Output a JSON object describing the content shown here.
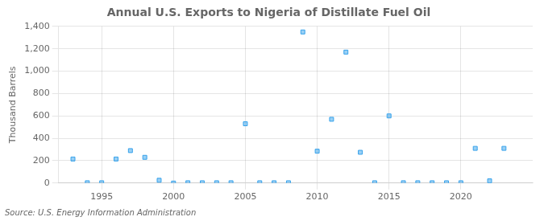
{
  "chart_data": {
    "type": "scatter",
    "title": "Annual U.S. Exports to Nigeria of Distillate Fuel Oil",
    "ylabel": "Thousand Barrels",
    "source": "Source: U.S. Energy Information Administration",
    "x": [
      1993,
      1994,
      1995,
      1996,
      1997,
      1998,
      1999,
      2000,
      2001,
      2002,
      2003,
      2004,
      2005,
      2006,
      2007,
      2008,
      2009,
      2010,
      2011,
      2012,
      2013,
      2014,
      2015,
      2016,
      2017,
      2018,
      2019,
      2020,
      2021,
      2022,
      2023
    ],
    "values": [
      215,
      3,
      3,
      215,
      290,
      230,
      25,
      0,
      3,
      3,
      3,
      3,
      530,
      3,
      3,
      3,
      1350,
      285,
      570,
      1170,
      275,
      3,
      600,
      3,
      3,
      3,
      3,
      3,
      310,
      20,
      310
    ],
    "marker": "square",
    "xlim": [
      1992,
      2025
    ],
    "xticks": [
      1995,
      2000,
      2005,
      2010,
      2015,
      2020
    ],
    "ylim": [
      0,
      1400
    ],
    "yticks": [
      0,
      200,
      400,
      600,
      800,
      {
        "value": 1000,
        "label": "1,000"
      },
      {
        "value": 1200,
        "label": "1,200"
      },
      {
        "value": 1400,
        "label": "1,400"
      }
    ],
    "grid": true
  }
}
